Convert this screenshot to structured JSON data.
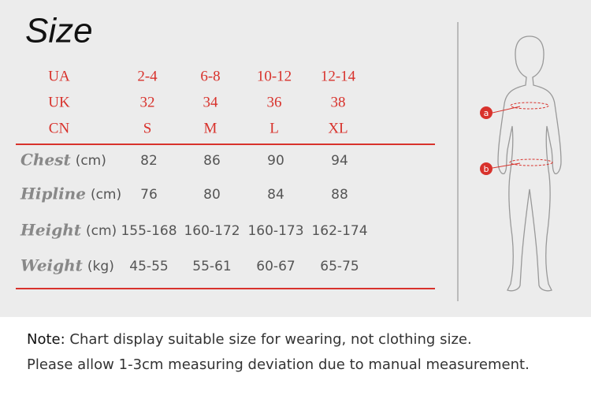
{
  "title": "Size",
  "size_rows": [
    {
      "label": "UA",
      "values": [
        "2-4",
        "6-8",
        "10-12",
        "12-14"
      ]
    },
    {
      "label": "UK",
      "values": [
        "32",
        "34",
        "36",
        "38"
      ]
    },
    {
      "label": "CN",
      "values": [
        "S",
        "M",
        "L",
        "XL"
      ]
    }
  ],
  "measure_rows": [
    {
      "label": "Chest",
      "unit": "(cm)",
      "values": [
        "82",
        "86",
        "90",
        "94"
      ]
    },
    {
      "label": "Hipline",
      "unit": "(cm)",
      "values": [
        "76",
        "80",
        "84",
        "88"
      ]
    },
    {
      "label": "Height",
      "unit": "(cm)",
      "values": [
        "155-168",
        "160-172",
        "160-173",
        "162-174"
      ]
    },
    {
      "label": "Weight",
      "unit": "(kg)",
      "values": [
        "45-55",
        "55-61",
        "60-67",
        "65-75"
      ]
    }
  ],
  "figure": {
    "markers": [
      "a",
      "b"
    ]
  },
  "notes": [
    {
      "label": "Note:",
      "text": "Chart display suitable size for wearing, not clothing size."
    },
    {
      "text": "Please allow 1-3cm measuring deviation due to manual measurement."
    }
  ]
}
